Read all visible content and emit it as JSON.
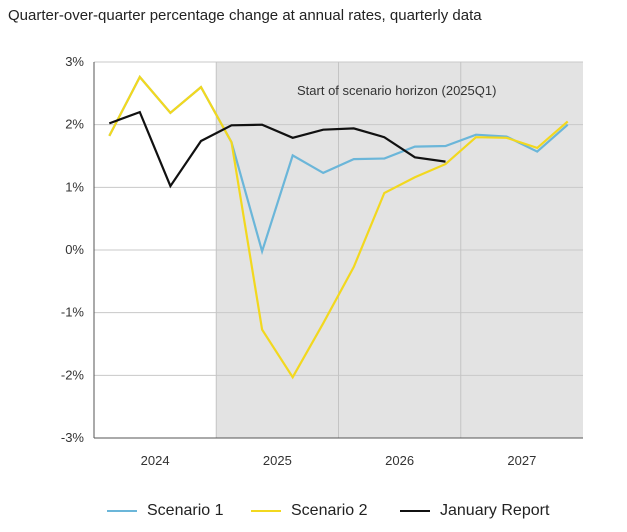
{
  "title": "Quarter-over-quarter percentage change at annual rates, quarterly data",
  "legend": [
    {
      "name": "Scenario 1",
      "color": "#6bb6d9"
    },
    {
      "name": "Scenario 2",
      "color": "#f2d81f"
    },
    {
      "name": "January Report",
      "color": "#111111"
    }
  ],
  "chart_data": {
    "type": "line",
    "title": "Quarter-over-quarter percentage change at annual rates, quarterly data",
    "annotation": "Start of scenario horizon (2025Q1)",
    "shaded_region": {
      "from": "2025Q1",
      "to": "2027Q4"
    },
    "x": [
      "2024Q1",
      "2024Q2",
      "2024Q3",
      "2024Q4",
      "2025Q1",
      "2025Q2",
      "2025Q3",
      "2025Q4",
      "2026Q1",
      "2026Q2",
      "2026Q3",
      "2026Q4",
      "2027Q1",
      "2027Q2",
      "2027Q3",
      "2027Q4"
    ],
    "year_labels": [
      "2024",
      "2025",
      "2026",
      "2027"
    ],
    "ylim": [
      -3,
      3
    ],
    "yticks": [
      3,
      2,
      1,
      0,
      -1,
      -2,
      -3
    ],
    "ytick_labels": [
      "3%",
      "2%",
      "1%",
      "0%",
      "-1%",
      "-2%",
      "-3%"
    ],
    "grid": true,
    "legend_position": "bottom",
    "series": [
      {
        "name": "Scenario 1",
        "color": "#6bb6d9",
        "values": [
          1.82,
          2.76,
          2.19,
          2.6,
          1.72,
          -0.02,
          1.51,
          1.23,
          1.45,
          1.46,
          1.65,
          1.66,
          1.84,
          1.81,
          1.57,
          2.0
        ]
      },
      {
        "name": "Scenario 2",
        "color": "#f2d81f",
        "values": [
          1.82,
          2.76,
          2.19,
          2.6,
          1.72,
          -1.27,
          -2.03,
          -1.17,
          -0.27,
          0.91,
          1.16,
          1.37,
          1.8,
          1.79,
          1.63,
          2.05
        ]
      },
      {
        "name": "January Report",
        "color": "#111111",
        "values": [
          2.02,
          2.2,
          1.02,
          1.74,
          1.99,
          2.0,
          1.79,
          1.92,
          1.94,
          1.8,
          1.48,
          1.41,
          null,
          null,
          null,
          null
        ]
      }
    ]
  }
}
